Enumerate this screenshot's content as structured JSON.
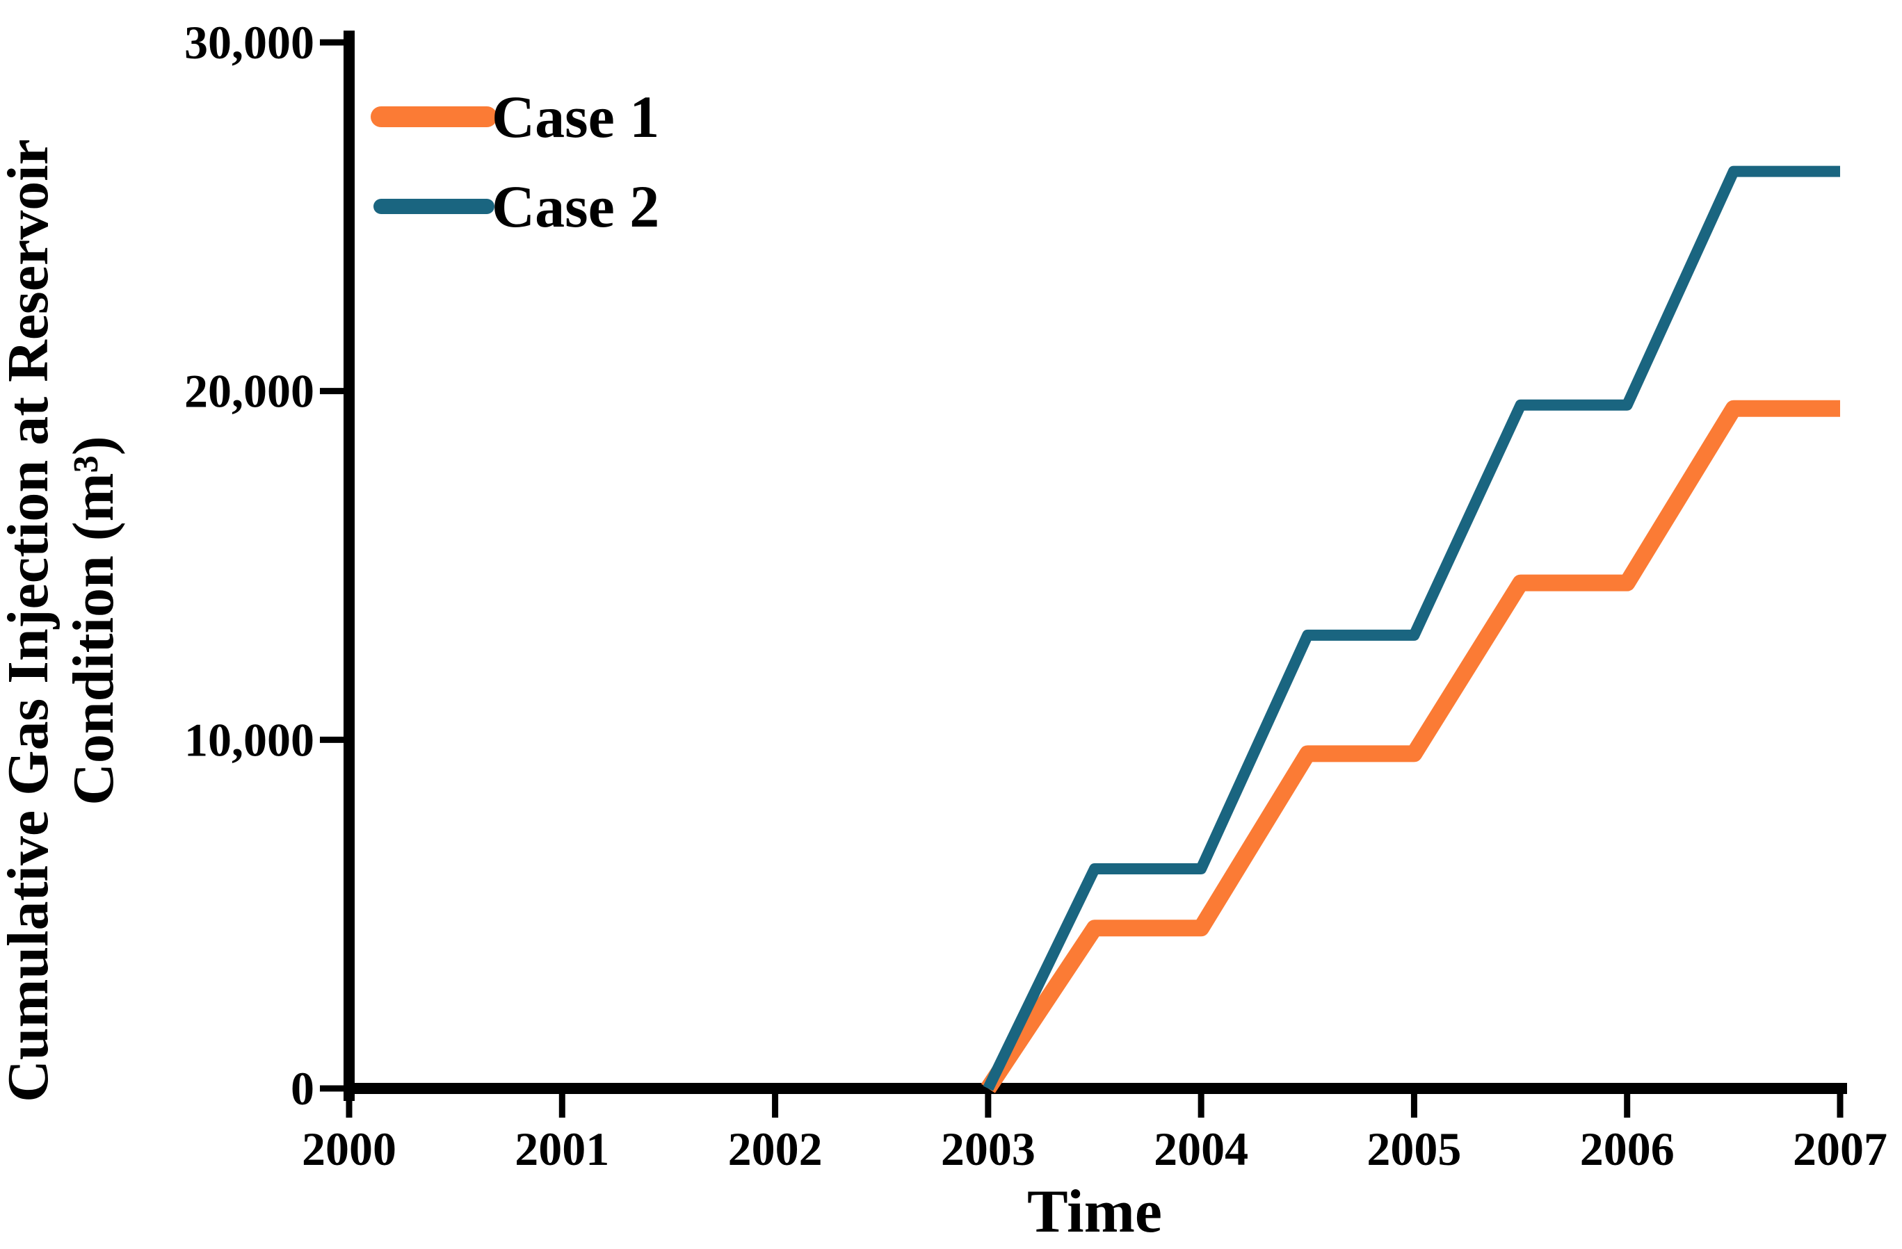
{
  "figure": {
    "background_color": "#ffffff",
    "text_color": "#000000",
    "axis_color": "#000000"
  },
  "chart_data": {
    "type": "line",
    "title": "",
    "xlabel": "Time",
    "ylabel_line1": "Cumulative Gas Injection at Reservoir",
    "ylabel_line2": "Condition (m³)",
    "xlim": [
      2000,
      2007
    ],
    "ylim": [
      0,
      30000
    ],
    "x_ticks": [
      2000,
      2001,
      2002,
      2003,
      2004,
      2005,
      2006,
      2007
    ],
    "x_tick_labels": [
      "2000",
      "2001",
      "2002",
      "2003",
      "2004",
      "2005",
      "2006",
      "2007"
    ],
    "y_ticks": [
      0,
      10000,
      20000,
      30000
    ],
    "y_tick_labels": [
      "0",
      "10,000",
      "20,000",
      "30,000"
    ],
    "grid": false,
    "legend_position": "upper-left-inside",
    "series": [
      {
        "name": "Case 1",
        "color": "#FB7B35",
        "line_width": 24,
        "x": [
          2003,
          2003.5,
          2004,
          2004.5,
          2005,
          2005.5,
          2006,
          2006.5,
          2007
        ],
        "y": [
          0,
          4600,
          4600,
          9600,
          9600,
          14500,
          14500,
          19500,
          19500
        ]
      },
      {
        "name": "Case 2",
        "color": "#1A6580",
        "line_width": 16,
        "x": [
          2003,
          2003.5,
          2004,
          2004.5,
          2005,
          2005.5,
          2006,
          2006.5,
          2007
        ],
        "y": [
          0,
          6300,
          6300,
          13000,
          13000,
          19600,
          19600,
          26300,
          26300
        ]
      }
    ]
  }
}
